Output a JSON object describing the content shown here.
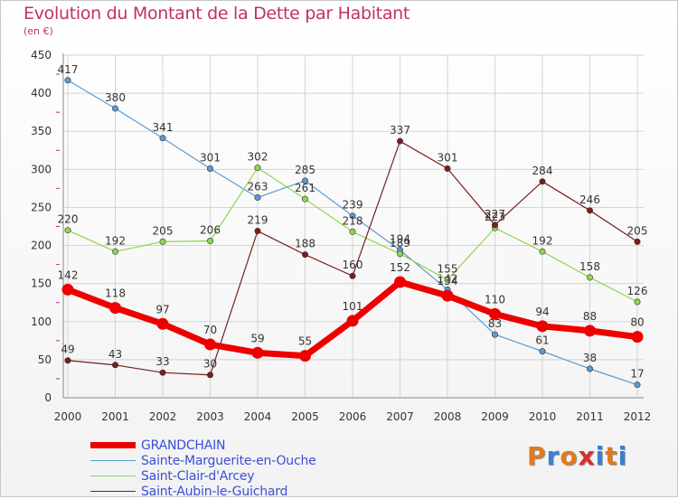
{
  "title": "Evolution du Montant de la Dette par Habitant",
  "subtitle": "(en €)",
  "logo": {
    "text": "Proxiti",
    "colors": [
      "#e07b1c",
      "#3a7fd5",
      "#e07b1c",
      "#d92d2d",
      "#3a7fd5",
      "#e07b1c",
      "#3a7fd5"
    ]
  },
  "chart_data": {
    "type": "line",
    "x": [
      "2000",
      "2001",
      "2002",
      "2003",
      "2004",
      "2005",
      "2006",
      "2007",
      "2008",
      "2009",
      "2010",
      "2011",
      "2012"
    ],
    "ylim": [
      0,
      450
    ],
    "yticks": [
      0,
      50,
      100,
      150,
      200,
      250,
      300,
      350,
      400,
      450
    ],
    "grid": true,
    "legend_position": "bottom-left",
    "series": [
      {
        "name": "Sainte-Marguerite-en-Ouche",
        "color": "#5b9bd5",
        "values": [
          417,
          380,
          341,
          301,
          263,
          285,
          239,
          194,
          142,
          83,
          61,
          38,
          17
        ],
        "labels": [
          "417",
          "380",
          "341",
          "301",
          "263",
          "285",
          "239",
          "194",
          "142",
          "83",
          "61",
          "38",
          "17"
        ]
      },
      {
        "name": "Saint-Clair-d'Arcey",
        "color": "#8fd650",
        "values": [
          220,
          192,
          205,
          206,
          302,
          261,
          218,
          189,
          155,
          223,
          192,
          158,
          126
        ],
        "labels": [
          "220",
          "192",
          "205",
          "206",
          "302",
          "261",
          "218",
          "189",
          "155",
          "223",
          "192",
          "158",
          "126"
        ]
      },
      {
        "name": "Saint-Aubin-le-Guichard",
        "color": "#7a1e1e",
        "values": [
          49,
          43,
          33,
          30,
          219,
          188,
          160,
          337,
          301,
          227,
          284,
          246,
          205
        ],
        "labels": [
          "49",
          "43",
          "33",
          "30",
          "219",
          "188",
          "160",
          "337",
          "301",
          "227",
          "284",
          "246",
          "205"
        ]
      },
      {
        "name": "GRANDCHAIN",
        "color": "#ee0000",
        "values": [
          142,
          118,
          97,
          70,
          59,
          55,
          101,
          152,
          134,
          110,
          94,
          88,
          80
        ],
        "labels": [
          "142",
          "118",
          "97",
          "70",
          "59",
          "55",
          "101",
          "152",
          "134",
          "110",
          "94",
          "88",
          "80"
        ]
      }
    ],
    "legend_order": [
      "GRANDCHAIN",
      "Sainte-Marguerite-en-Ouche",
      "Saint-Clair-d'Arcey",
      "Saint-Aubin-le-Guichard"
    ]
  }
}
